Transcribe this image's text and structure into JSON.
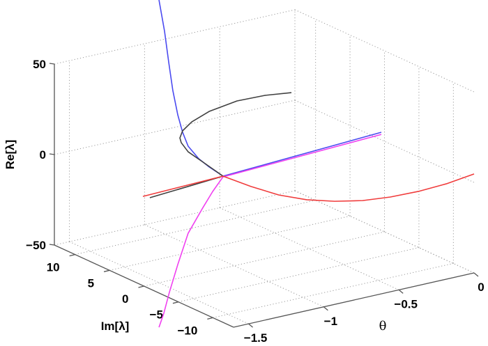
{
  "chart_data": {
    "type": "line3d",
    "title": "",
    "xlabel": "θ",
    "ylabel": "Im[λ]",
    "zlabel": "Re[λ]",
    "xlim": [
      -1.6,
      0
    ],
    "ylim": [
      -13,
      13
    ],
    "zlim": [
      -50,
      50
    ],
    "grid": true,
    "xticks": [
      -1.5,
      -1,
      -0.5,
      0
    ],
    "xtick_labels": [
      "−1.5",
      "−1",
      "−0.5",
      "0"
    ],
    "yticks": [
      10,
      5,
      0,
      -5,
      -10
    ],
    "ytick_labels": [
      "10",
      "5",
      "0",
      "−5",
      "−10"
    ],
    "zticks": [
      50,
      0,
      -50
    ],
    "ztick_labels": [
      "50",
      "0",
      "−50"
    ],
    "series": [
      {
        "name": "blue",
        "color": "#4a4af0",
        "theta": [
          -0.021,
          -1.074,
          -1.166,
          -1.236,
          -1.306,
          -1.343,
          -1.375,
          -1.408,
          -1.435,
          -1.463,
          -1.5
        ],
        "im": [
          0,
          0,
          0,
          0,
          0,
          0,
          0,
          0,
          0,
          0,
          0
        ],
        "re": [
          5.4,
          0.9,
          7.7,
          13.6,
          21.8,
          30.2,
          40.4,
          54.5,
          70.4,
          88.2,
          106.2
        ]
      },
      {
        "name": "magenta",
        "color": "#f040f0",
        "theta": [
          -0.021,
          -1.074,
          -1.143,
          -1.213,
          -1.306,
          -1.375,
          -1.431,
          -1.468,
          -1.5
        ],
        "im": [
          0,
          0,
          0,
          0,
          0,
          0,
          0,
          0,
          0
        ],
        "re": [
          4.2,
          0.5,
          -6.3,
          -14.6,
          -26.3,
          -42.3,
          -56.6,
          -67.5,
          -74.6
        ]
      },
      {
        "name": "black",
        "color": "#404040",
        "theta": [
          -1.561,
          -1.074,
          -1.213,
          -1.306,
          -1.352,
          -1.361,
          -1.343,
          -1.282,
          -1.166,
          -0.981,
          -0.795,
          -0.619
        ],
        "im": [
          0,
          0,
          0,
          0,
          0,
          0,
          0,
          0,
          0,
          0,
          0,
          0
        ],
        "re": [
          -1.9,
          0.9,
          11.6,
          18.7,
          24.6,
          27.4,
          31.0,
          34.8,
          38.4,
          40.7,
          40.3,
          38.5
        ]
      },
      {
        "name": "red",
        "color": "#f03c3c",
        "theta": [
          -1.607,
          -1.074,
          -0.888,
          -0.702,
          -0.517,
          -0.332,
          -0.146,
          0.039,
          0.225,
          0.411,
          0.596
        ],
        "im": [
          0,
          0,
          0,
          0,
          0,
          0,
          0,
          0,
          0,
          0,
          0
        ],
        "re": [
          -0.3,
          0.9,
          -8.3,
          -16.5,
          -22.6,
          -26.9,
          -30.0,
          -31.5,
          -31.9,
          -31.2,
          -29.2
        ]
      }
    ]
  }
}
